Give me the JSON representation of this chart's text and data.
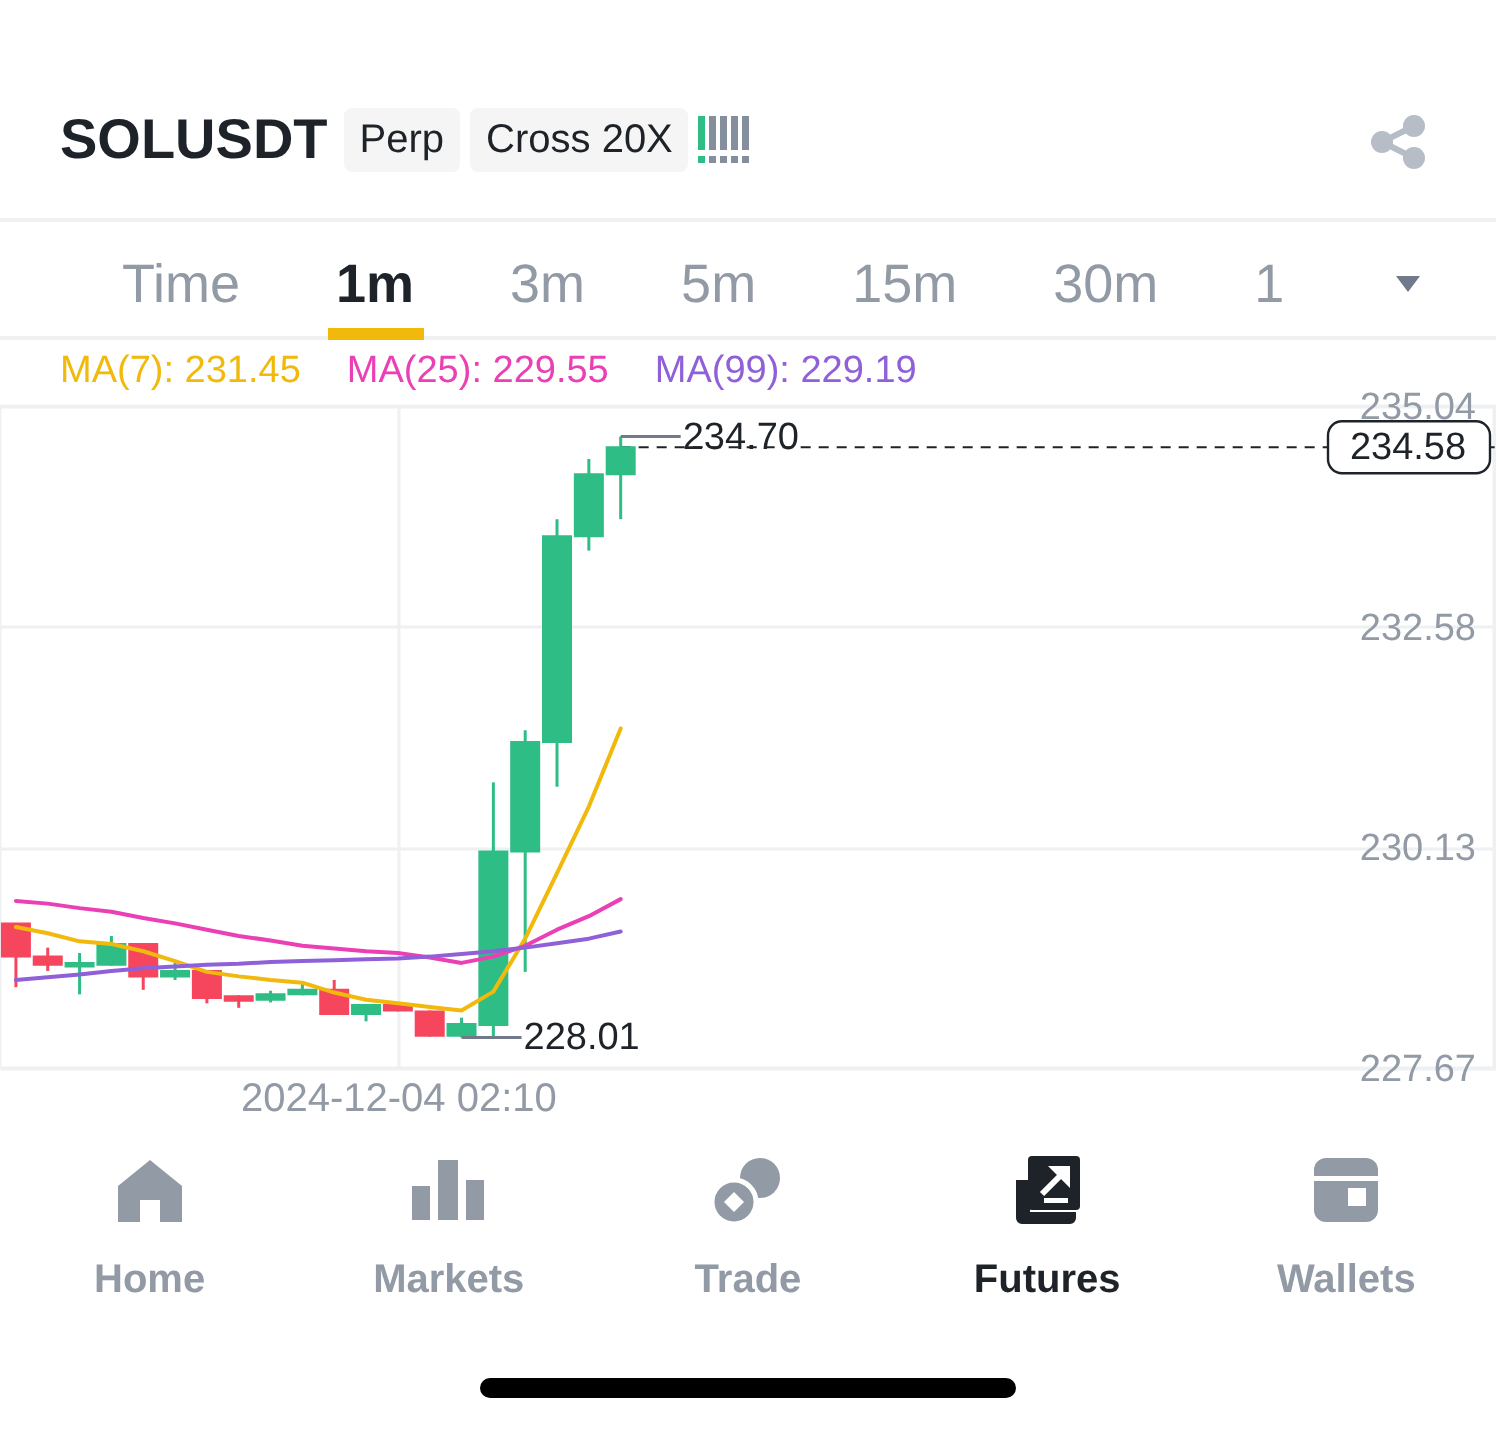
{
  "chart_data": [
    {
      "type": "other",
      "title": "SOLUSDT",
      "annotations": [
        "Perp",
        "Cross 20X"
      ]
    },
    {
      "type": "other",
      "annotations": [
        "Time",
        "1m",
        "3m",
        "5m",
        "15m",
        "30m",
        "1"
      ]
    },
    {
      "type": "candlestick",
      "categories": [
        null,
        null,
        null,
        null,
        null,
        null,
        null,
        null,
        null,
        null,
        null,
        null,
        "2024-12-04 02:10",
        null,
        null,
        null,
        null,
        null,
        null,
        null,
        null,
        null,
        null,
        null,
        null,
        null,
        null,
        null,
        null,
        null,
        null,
        null,
        null,
        null,
        null,
        null,
        null,
        null,
        null,
        null,
        null,
        null,
        null,
        null,
        null,
        null,
        null
      ],
      "ohlc": [
        [
          229.28,
          229.28,
          228.57,
          228.91
        ],
        [
          228.91,
          229.01,
          228.75,
          228.82
        ],
        [
          228.8,
          228.95,
          228.49,
          228.84
        ],
        [
          228.82,
          229.14,
          228.81,
          229.05
        ],
        [
          229.05,
          229.06,
          228.54,
          228.69
        ],
        [
          228.69,
          228.84,
          228.65,
          228.75
        ],
        [
          228.75,
          228.76,
          228.39,
          228.45
        ],
        [
          228.47,
          228.48,
          228.34,
          228.42
        ],
        [
          228.43,
          228.53,
          228.4,
          228.49
        ],
        [
          228.49,
          228.62,
          228.48,
          228.54
        ],
        [
          228.54,
          228.65,
          228.26,
          228.27
        ],
        [
          228.27,
          228.38,
          228.19,
          228.37
        ],
        [
          228.37,
          228.38,
          228.3,
          228.31
        ],
        [
          228.3,
          228.31,
          228.02,
          228.03
        ],
        [
          228.03,
          228.23,
          228.01,
          228.16
        ],
        [
          228.15,
          230.85,
          228.02,
          230.08
        ],
        [
          230.08,
          231.43,
          228.74,
          231.3
        ],
        [
          231.3,
          233.78,
          230.8,
          233.59
        ],
        [
          233.59,
          234.45,
          233.43,
          234.28
        ],
        [
          234.28,
          234.7,
          233.78,
          234.58
        ],
        null,
        null,
        null,
        null,
        null,
        null,
        null,
        null,
        null,
        null,
        null,
        null,
        null,
        null,
        null,
        null,
        null,
        null,
        null,
        null,
        null,
        null,
        null,
        null,
        null,
        null,
        null
      ],
      "colors": [
        "#f6465d",
        "#f6465d",
        "#2ebd85",
        "#2ebd85",
        "#f6465d",
        "#2ebd85",
        "#f6465d",
        "#f6465d",
        "#2ebd85",
        "#2ebd85",
        "#f6465d",
        "#2ebd85",
        "#f6465d",
        "#f6465d",
        "#2ebd85",
        "#2ebd85",
        "#2ebd85",
        "#2ebd85",
        "#2ebd85",
        "#2ebd85",
        null,
        null,
        null,
        null,
        null,
        null,
        null,
        null,
        null,
        null,
        null,
        null,
        null,
        null,
        null,
        null,
        null,
        null,
        null,
        null,
        null,
        null,
        null,
        null,
        null,
        null,
        null
      ],
      "series": [
        {
          "name": "MA(7): 231.45",
          "type": "line",
          "color": "#f0b90b",
          "values": [
            229.24,
            229.17,
            229.08,
            229.05,
            228.97,
            228.86,
            228.74,
            228.69,
            228.65,
            228.62,
            228.51,
            228.43,
            228.39,
            228.35,
            228.31,
            228.52,
            229.11,
            229.84,
            230.58,
            231.45,
            null,
            null,
            null,
            null,
            null,
            null,
            null,
            null,
            null,
            null,
            null,
            null,
            null,
            null,
            null,
            null,
            null,
            null,
            null,
            null,
            null,
            null,
            null,
            null,
            null,
            null,
            null
          ]
        },
        {
          "name": "MA(25): 229.55",
          "type": "line",
          "color": "#eb40b5",
          "values": [
            229.53,
            229.5,
            229.45,
            229.41,
            229.34,
            229.28,
            229.21,
            229.14,
            229.09,
            229.03,
            229.0,
            228.97,
            228.95,
            228.9,
            228.84,
            228.91,
            229.03,
            229.21,
            229.36,
            229.55,
            null,
            null,
            null,
            null,
            null,
            null,
            null,
            null,
            null,
            null,
            null,
            null,
            null,
            null,
            null,
            null,
            null,
            null,
            null,
            null,
            null,
            null,
            null,
            null,
            null,
            null,
            null
          ]
        },
        {
          "name": "MA(99): 229.19",
          "type": "line",
          "color": "#9060d8",
          "values": [
            228.65,
            228.68,
            228.71,
            228.75,
            228.78,
            228.8,
            228.82,
            228.83,
            228.85,
            228.86,
            228.87,
            228.88,
            228.89,
            228.91,
            228.94,
            228.97,
            229.01,
            229.06,
            229.11,
            229.19,
            null,
            null,
            null,
            null,
            null,
            null,
            null,
            null,
            null,
            null,
            null,
            null,
            null,
            null,
            null,
            null,
            null,
            null,
            null,
            null,
            null,
            null,
            null,
            null,
            null,
            null,
            null
          ]
        }
      ],
      "ylim": [
        227.67,
        235.04
      ],
      "yticks": [
        227.67,
        230.13,
        232.58,
        235.04
      ],
      "grid": true,
      "legend": "top left",
      "ref_lines": [
        {
          "axis": "y",
          "value": 234.58,
          "label": "234.58",
          "color": "#1e2329",
          "line_style": "dashed"
        }
      ],
      "annotations": [
        "234.70",
        "228.01"
      ]
    },
    {
      "type": "other",
      "annotations": [
        "Home",
        "Markets",
        "Trade",
        "Futures",
        "Wallets"
      ]
    }
  ]
}
